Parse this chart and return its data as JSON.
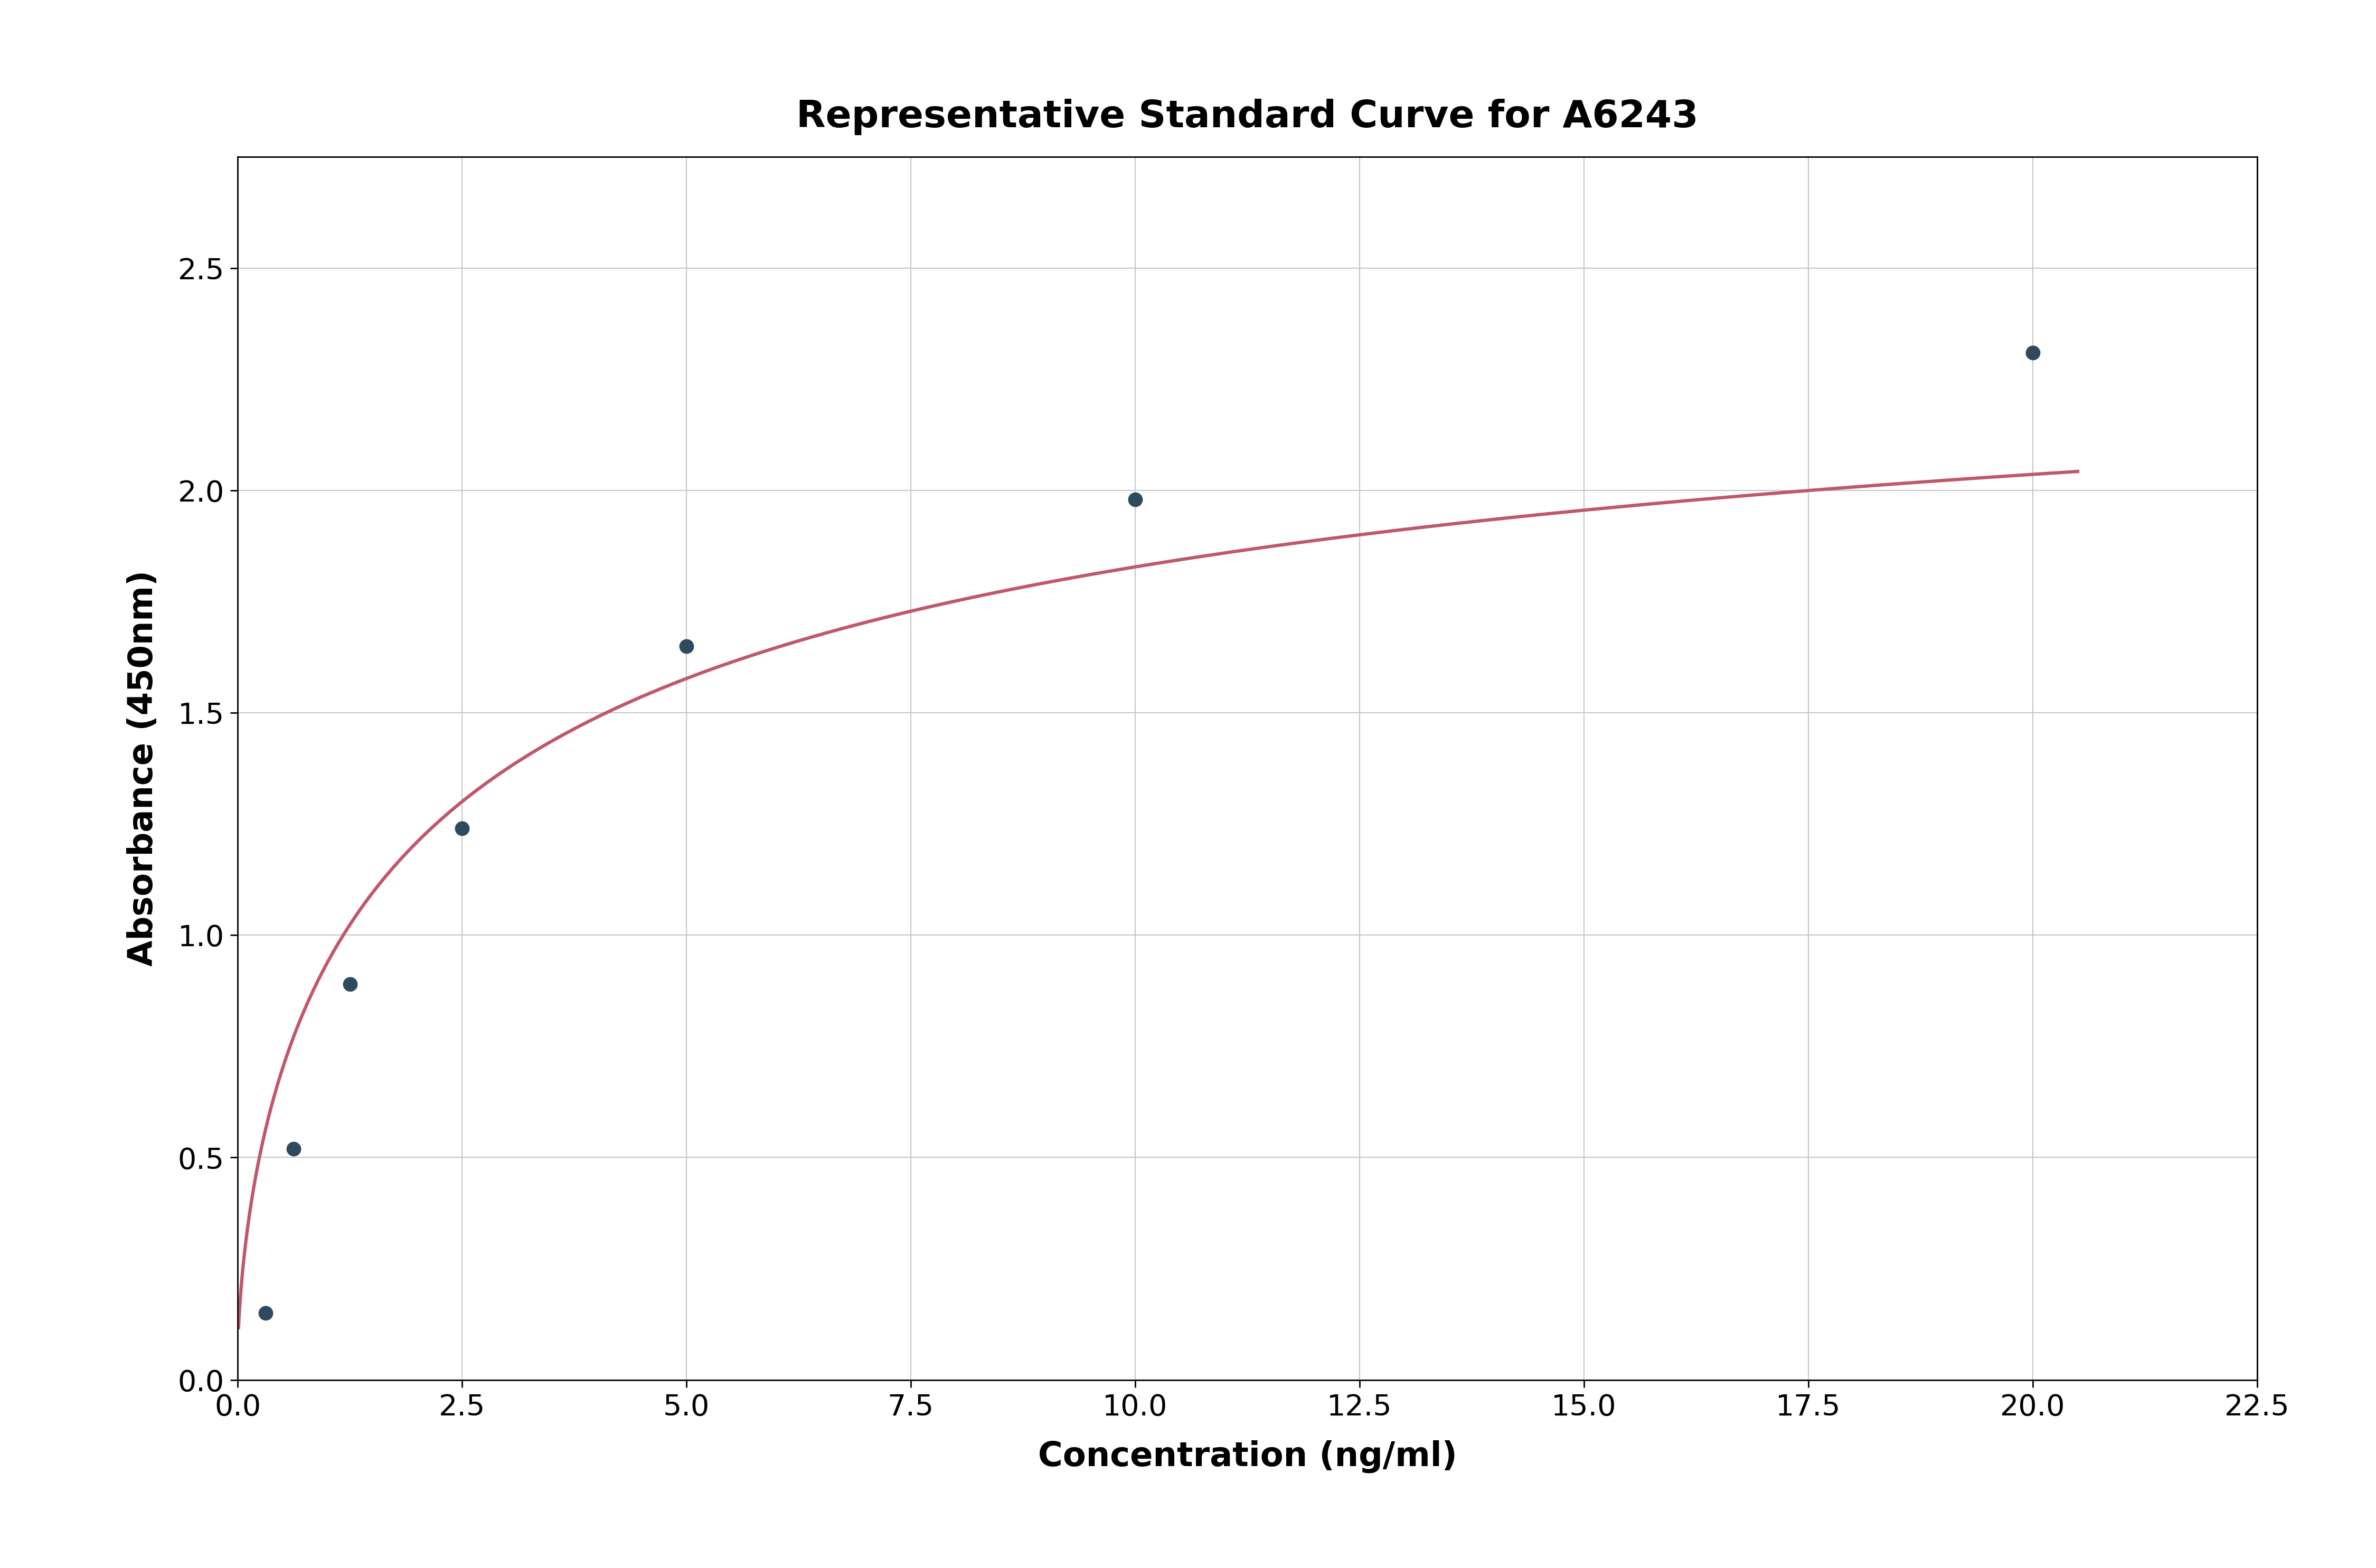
{
  "title": "Representative Standard Curve for A6243",
  "xlabel": "Concentration (ng/ml)",
  "ylabel": "Absorbance (450nm)",
  "data_x": [
    0.313,
    0.625,
    1.25,
    2.5,
    5.0,
    10.0,
    20.0
  ],
  "data_y": [
    0.15,
    0.52,
    0.89,
    1.24,
    1.65,
    1.98,
    2.31
  ],
  "xlim": [
    0,
    22.5
  ],
  "ylim": [
    0,
    2.75
  ],
  "xticks": [
    0.0,
    2.5,
    5.0,
    7.5,
    10.0,
    12.5,
    15.0,
    17.5,
    20.0,
    22.5
  ],
  "yticks": [
    0.0,
    0.5,
    1.0,
    1.5,
    2.0,
    2.5
  ],
  "curve_color": "#c0576a",
  "marker_color": "#2e4a5e",
  "marker_edge_color": "#2e4a5e",
  "background_color": "#ffffff",
  "grid_color": "#c8c8c8",
  "title_fontsize": 52,
  "label_fontsize": 46,
  "tick_fontsize": 40,
  "marker_size": 18,
  "line_width": 4.5
}
